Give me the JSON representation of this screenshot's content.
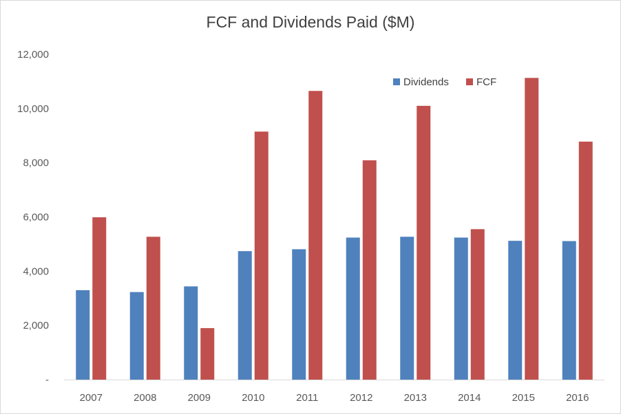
{
  "chart_data": {
    "type": "bar",
    "title": "FCF and Dividends Paid ($M)",
    "categories": [
      "2007",
      "2008",
      "2009",
      "2010",
      "2011",
      "2012",
      "2013",
      "2014",
      "2015",
      "2016"
    ],
    "series": [
      {
        "name": "Dividends",
        "color": "#4f81bd",
        "values": [
          3300,
          3230,
          3440,
          4740,
          4810,
          5240,
          5270,
          5240,
          5120,
          5110
        ]
      },
      {
        "name": "FCF",
        "color": "#c0504d",
        "values": [
          5990,
          5270,
          1900,
          9150,
          10650,
          8090,
          10100,
          5550,
          11130,
          8780
        ]
      }
    ],
    "ylim": [
      0,
      12000
    ],
    "yticks": [
      0,
      2000,
      4000,
      6000,
      8000,
      10000,
      12000
    ],
    "ytick_labels": [
      "-",
      "2,000",
      "4,000",
      "6,000",
      "8,000",
      "10,000",
      "12,000"
    ],
    "grid": false,
    "legend": "top-right",
    "xlabel": "",
    "ylabel": ""
  }
}
